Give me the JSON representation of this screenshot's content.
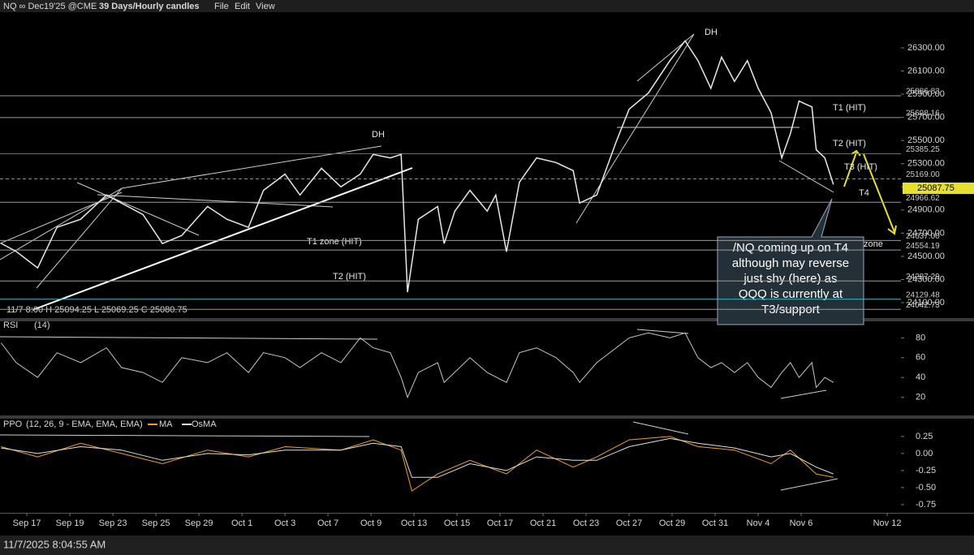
{
  "toolbar": {
    "symbol": "NQ ∞ Dec19'25 @CME",
    "interval": "39 Days/Hourly candles",
    "menus": [
      "File",
      "Edit",
      "View"
    ]
  },
  "status": "11/7/2025 8:04:55 AM",
  "chart_data": [
    {
      "type": "line",
      "ohlc_label": "11/7 8:00 H 25094.25  L 25069.25  C 25080.75",
      "x": [
        -1.2,
        -0.5,
        0.5,
        1.4,
        2.5,
        3.7,
        4.4,
        5.4,
        6.3,
        7.2,
        8.4,
        9.3,
        10.3,
        11.0,
        12.0,
        12.7,
        13.7,
        14.6,
        15.5,
        16.1,
        16.9,
        17.4,
        17.7,
        18.2,
        19.1,
        19.4,
        19.9,
        20.6,
        21.4,
        21.8,
        22.3,
        22.9,
        23.7,
        24.6,
        25.4,
        25.7,
        26.5,
        27.4,
        28.0,
        28.9,
        29.9,
        30.6,
        31.2,
        31.8,
        32.3,
        32.9,
        33.5,
        34.0,
        34.6,
        35.1,
        35.5,
        35.9,
        36.5,
        36.7,
        37.1,
        37.5
      ],
      "series": [
        {
          "color": "#e8e8e8",
          "values": [
            24612,
            24542,
            24400,
            24750,
            24820,
            25030,
            24960,
            24860,
            24610,
            24680,
            24930,
            24820,
            24750,
            25070,
            25210,
            25030,
            25260,
            25100,
            25210,
            25380,
            25350,
            25380,
            24190,
            24820,
            24930,
            24610,
            24890,
            25070,
            24890,
            25030,
            24540,
            25140,
            25350,
            25310,
            25240,
            24960,
            25030,
            25490,
            25770,
            25910,
            26190,
            26360,
            26190,
            25950,
            26220,
            26010,
            26190,
            25950,
            25740,
            25350,
            25560,
            25840,
            25790,
            25420,
            25350,
            25120
          ]
        }
      ],
      "xlim": [
        -1.25,
        40.64
      ],
      "xticks": [
        {
          "value": 0,
          "label": "Sep 17"
        },
        {
          "value": 2,
          "label": "Sep 19"
        },
        {
          "value": 4,
          "label": "Sep 23"
        },
        {
          "value": 6,
          "label": "Sep 25"
        },
        {
          "value": 8,
          "label": "Sep 29"
        },
        {
          "value": 10,
          "label": "Oct 1"
        },
        {
          "value": 12,
          "label": "Oct 3"
        },
        {
          "value": 14,
          "label": "Oct 7"
        },
        {
          "value": 16,
          "label": "Oct 9"
        },
        {
          "value": 18,
          "label": "Oct 13"
        },
        {
          "value": 20,
          "label": "Oct 15"
        },
        {
          "value": 22,
          "label": "Oct 17"
        },
        {
          "value": 24,
          "label": "Oct 21"
        },
        {
          "value": 26,
          "label": "Oct 23"
        },
        {
          "value": 28,
          "label": "Oct 27"
        },
        {
          "value": 30,
          "label": "Oct 29"
        },
        {
          "value": 32,
          "label": "Oct 31"
        },
        {
          "value": 34,
          "label": "Nov 4"
        },
        {
          "value": 36,
          "label": "Nov 6"
        },
        {
          "value": 40,
          "label": "Nov 12"
        }
      ],
      "ylim": [
        23967,
        26503
      ],
      "yticks": [
        {
          "value": 24100,
          "label": "24100.00"
        },
        {
          "value": 24300,
          "label": "24300.00"
        },
        {
          "value": 24500,
          "label": "24500.00"
        },
        {
          "value": 24700,
          "label": "24700.00"
        },
        {
          "value": 24900,
          "label": "24900.00"
        },
        {
          "value": 25100,
          "label": "25100.00"
        },
        {
          "value": 25300,
          "label": "25300.00"
        },
        {
          "value": 25500,
          "label": "25500.00"
        },
        {
          "value": 25700,
          "label": "25700.00"
        },
        {
          "value": 25900,
          "label": "25900.00"
        },
        {
          "value": 26100,
          "label": "26100.00"
        },
        {
          "value": 26300,
          "label": "26300.00"
        }
      ],
      "levels": [
        {
          "value": 25886.83,
          "label": "25886.83",
          "color": "#9a9a9a"
        },
        {
          "value": 25698.16,
          "label": "25698.16",
          "color": "#9a9a9a"
        },
        {
          "value": 25385.25,
          "label": "25385.25",
          "color": "#a040c0"
        },
        {
          "value": 25169.0,
          "label": "25169.00",
          "color": "#9a9a9a",
          "dashed": true
        },
        {
          "value": 24966.62,
          "label": "24966.62",
          "color": "#9a9a9a"
        },
        {
          "value": 24637.0,
          "label": "24637.00",
          "color": "#9a9a9a"
        },
        {
          "value": 24554.19,
          "label": "24554.19",
          "color": "#9a9a9a"
        },
        {
          "value": 24287.29,
          "label": "24287.29",
          "color": "#9a9a9a"
        },
        {
          "value": 24129.48,
          "label": "24129.48",
          "color": "#30c0d0"
        },
        {
          "value": 24042.73,
          "label": "24042.73",
          "color": "#9a9a9a"
        }
      ],
      "last_price": {
        "value": 25087.75,
        "label": "25087.75"
      },
      "annotations": {
        "dh1": "DH",
        "dh2": "DH",
        "t1": "T1 (HIT)",
        "t2": "T2 (HIT)",
        "t3": "T3 (HIT)",
        "t4": "T4",
        "t1zone": "T1 zone (HIT)",
        "t2left": "T2 (HIT)",
        "zone": "zone",
        "callout": [
          "/NQ coming up on T4",
          "although may reverse",
          "just shy (here) as",
          "QQQ is currently at",
          "T3/support"
        ]
      }
    },
    {
      "type": "line",
      "title": "RSI",
      "params": "(14)",
      "x": [
        -1.2,
        -0.5,
        0.5,
        1.4,
        2.5,
        3.7,
        4.4,
        5.4,
        6.3,
        7.2,
        8.4,
        9.3,
        10.3,
        11.0,
        12.0,
        12.7,
        13.7,
        14.6,
        15.5,
        16.1,
        16.9,
        17.4,
        17.7,
        18.2,
        19.1,
        19.4,
        20.6,
        21.4,
        22.3,
        22.9,
        23.7,
        24.6,
        25.4,
        25.7,
        26.5,
        27.4,
        28.0,
        28.9,
        29.9,
        30.6,
        31.2,
        31.8,
        32.3,
        32.9,
        33.5,
        34.0,
        34.6,
        35.1,
        35.5,
        35.9,
        36.5,
        36.7,
        37.1,
        37.5
      ],
      "series": [
        {
          "color": "#c8c8c8",
          "values": [
            75,
            55,
            40,
            65,
            55,
            70,
            50,
            45,
            35,
            60,
            55,
            65,
            45,
            65,
            60,
            50,
            65,
            55,
            80,
            70,
            65,
            40,
            20,
            45,
            55,
            35,
            60,
            45,
            35,
            65,
            70,
            60,
            45,
            35,
            55,
            70,
            80,
            85,
            80,
            85,
            60,
            50,
            55,
            45,
            55,
            40,
            30,
            45,
            55,
            40,
            55,
            30,
            40,
            35
          ]
        }
      ],
      "xlim": [
        -1.25,
        40.64
      ],
      "ylim": [
        1.7,
        96.7
      ],
      "yticks": [
        20,
        40,
        60,
        80
      ]
    },
    {
      "type": "line",
      "title": "PPO",
      "params": "(12, 26, 9 - EMA, EMA, EMA)",
      "x": [
        -1.2,
        0.5,
        2.5,
        4.4,
        6.3,
        8.4,
        10.3,
        12.0,
        14.6,
        16.1,
        17.4,
        17.9,
        19.1,
        20.6,
        22.3,
        23.7,
        25.4,
        26.5,
        28.0,
        29.9,
        31.2,
        32.9,
        34.6,
        35.5,
        36.7,
        37.5
      ],
      "series": [
        {
          "name": "MA",
          "color": "#f0a020",
          "values": [
            0.1,
            -0.05,
            0.15,
            0.0,
            -0.15,
            0.05,
            -0.05,
            0.1,
            0.05,
            0.2,
            0.05,
            -0.55,
            -0.3,
            -0.1,
            -0.3,
            0.05,
            -0.2,
            -0.05,
            0.2,
            0.25,
            0.1,
            0.05,
            -0.15,
            0.05,
            -0.3,
            -0.35
          ]
        },
        {
          "name": "OsMA",
          "color": "#e0e0e0",
          "values": [
            0.08,
            0.0,
            0.1,
            0.05,
            -0.1,
            0.0,
            -0.02,
            0.05,
            0.05,
            0.15,
            0.1,
            -0.35,
            -0.35,
            -0.15,
            -0.25,
            -0.05,
            -0.1,
            -0.1,
            0.1,
            0.22,
            0.15,
            0.08,
            -0.05,
            0.0,
            -0.2,
            -0.3
          ]
        }
      ],
      "xlim": [
        -1.25,
        40.64
      ],
      "ylim": [
        -0.87,
        0.51
      ],
      "yticks": [
        {
          "value": 0.25,
          "label": "0.25"
        },
        {
          "value": 0,
          "label": "0.00"
        },
        {
          "value": -0.25,
          "label": "-0.25"
        },
        {
          "value": -0.5,
          "label": "-0.50"
        },
        {
          "value": -0.75,
          "label": "-0.75"
        }
      ]
    }
  ]
}
